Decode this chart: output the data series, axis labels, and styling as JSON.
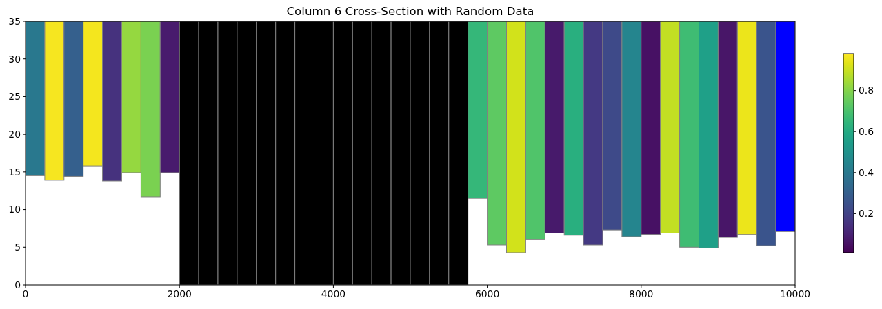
{
  "chart_data": {
    "type": "bar",
    "title": "Column 6 Cross-Section with Random Data",
    "x": [
      125,
      375,
      625,
      875,
      1125,
      1375,
      1625,
      1875,
      2125,
      2375,
      2625,
      2875,
      3125,
      3375,
      3625,
      3875,
      4125,
      4375,
      4625,
      4875,
      5125,
      5375,
      5625,
      5875,
      6125,
      6375,
      6625,
      6875,
      7125,
      7375,
      7625,
      7875,
      8125,
      8375,
      8625,
      8875,
      9125,
      9375,
      9625,
      9875
    ],
    "base": [
      14.5,
      13.9,
      14.4,
      15.8,
      13.8,
      14.9,
      11.7,
      14.9,
      0,
      0,
      0,
      0,
      0,
      0,
      0,
      0,
      0,
      0,
      0,
      0,
      0,
      0,
      0,
      11.5,
      5.3,
      4.3,
      6.0,
      6.9,
      6.6,
      5.3,
      7.3,
      6.4,
      6.7,
      6.9,
      5.0,
      4.9,
      6.3,
      6.7,
      5.2,
      7.1
    ],
    "values": [
      20.5,
      21.1,
      20.6,
      19.2,
      21.2,
      20.1,
      23.3,
      20.1,
      35,
      35,
      35,
      35,
      35,
      35,
      35,
      35,
      35,
      35,
      35,
      35,
      35,
      35,
      35,
      23.5,
      29.7,
      30.7,
      29.0,
      28.1,
      28.4,
      29.7,
      27.7,
      28.6,
      28.3,
      28.1,
      30.0,
      30.1,
      28.7,
      28.3,
      29.8,
      27.9
    ],
    "colors": [
      "#29788e",
      "#f6e620",
      "#35608d",
      "#f4e61e",
      "#46327e",
      "#95d840",
      "#7ad151",
      "#481b6d",
      "#000000",
      "#000000",
      "#000000",
      "#000000",
      "#000000",
      "#000000",
      "#000000",
      "#000000",
      "#000000",
      "#000000",
      "#000000",
      "#000000",
      "#000000",
      "#000000",
      "#000000",
      "#35b779",
      "#5ec962",
      "#d2e21b",
      "#50c46a",
      "#471a6b",
      "#29af7f",
      "#443983",
      "#3e4a89",
      "#25858e",
      "#471164",
      "#c2df23",
      "#3fbc73",
      "#1fa088",
      "#481668",
      "#ece51b",
      "#3a548c",
      "#0000ff"
    ],
    "xlim": [
      0,
      10000
    ],
    "xticks": [
      0,
      2000,
      4000,
      6000,
      8000,
      10000
    ],
    "ylim": [
      0,
      35
    ],
    "yticks": [
      0,
      5,
      10,
      15,
      20,
      25,
      30,
      35
    ],
    "clim": [
      0.01,
      0.98
    ],
    "cticks": [
      0.2,
      0.4,
      0.6,
      0.8
    ]
  }
}
